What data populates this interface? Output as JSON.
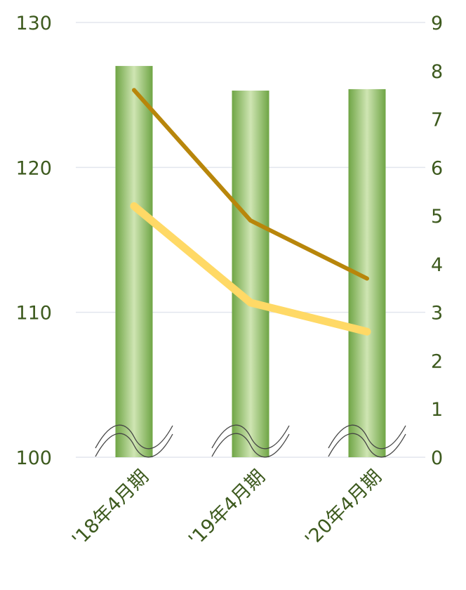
{
  "chart_data": {
    "type": "bar",
    "categories": [
      "'18年4月期",
      "'19年4月期",
      "'20年4月期"
    ],
    "bars": {
      "values": [
        127.0,
        125.3,
        125.4
      ],
      "color": "#7aad4f",
      "highlight": "#cfe5b3"
    },
    "lines": [
      {
        "values": [
          7.6,
          4.9,
          3.7
        ],
        "color": "#b8860b",
        "axis": "right"
      },
      {
        "values": [
          5.2,
          3.2,
          2.6
        ],
        "color": "#ffd966",
        "axis": "right"
      }
    ],
    "y_left": {
      "min": 100,
      "max": 130,
      "ticks": [
        "100",
        "110",
        "120",
        "130"
      ]
    },
    "y_right": {
      "min": 0,
      "max": 9,
      "ticks": [
        "0",
        "1",
        "2",
        "3",
        "4",
        "5",
        "6",
        "7",
        "8",
        "9"
      ]
    },
    "axis_break": true,
    "grid": true
  },
  "colors": {
    "text": "#3d5a1e",
    "grid": "#e3e6ee"
  }
}
